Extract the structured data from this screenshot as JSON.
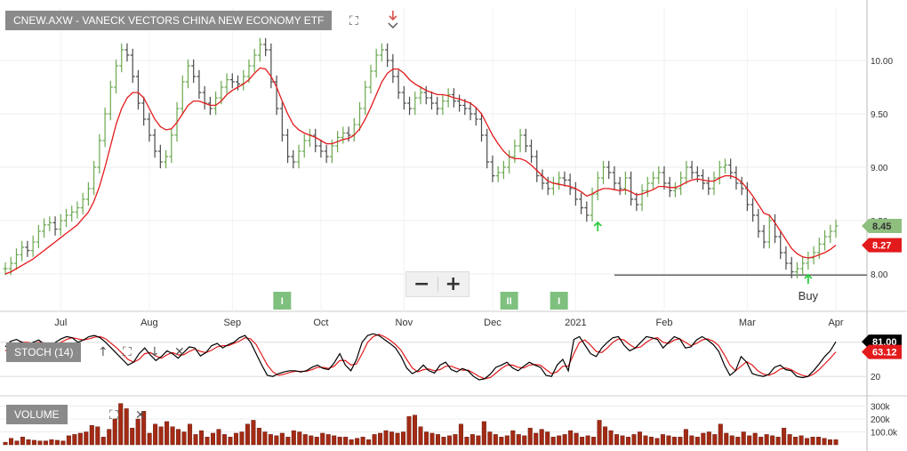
{
  "header": {
    "title": "CNEW.AXW - VANECK VECTORS CHINA NEW ECONOMY ETF"
  },
  "zoom": {
    "minus_label": "−",
    "plus_label": "+"
  },
  "panels": {
    "stoch_label": "STOCH (14)",
    "volume_label": "VOLUME"
  },
  "icons": {
    "fullscreen": "fullscreen-icon",
    "arrow_marker": "down-arrow-marker-icon",
    "close": "close-icon",
    "up": "arrow-up-icon",
    "down": "arrow-down-icon"
  },
  "colors": {
    "up_bar": "#6aa84f",
    "down_bar": "#4a4a4a",
    "ma_line": "#e31a1c",
    "stoch_k": "#000000",
    "stoch_d": "#e31a1c",
    "volume": "#a32a14",
    "last_price_tag": "#8fbf7f",
    "ma_tag": "#e31a1c",
    "event_badge": "#7fc07f",
    "buy_arrow": "#2ecc40"
  },
  "chart_data": [
    {
      "type": "line",
      "title": "CNEW.AXW - VANECK VECTORS CHINA NEW ECONOMY ETF",
      "x_tick_labels": [
        "Jul",
        "Aug",
        "Sep",
        "Oct",
        "Nov",
        "Dec",
        "2021",
        "Feb",
        "Mar",
        "Apr"
      ],
      "y_tick_labels": [
        "10.00",
        "9.50",
        "9.00",
        "8.50",
        "8.00"
      ],
      "ylim": [
        7.65,
        10.5
      ],
      "grid": true,
      "series": [
        {
          "values": [
            8.05,
            8.1,
            8.18,
            8.25,
            8.22,
            8.3,
            8.4,
            8.46,
            8.48,
            8.42,
            8.5,
            8.55,
            8.58,
            8.62,
            8.7,
            8.8,
            9.0,
            9.25,
            9.5,
            9.75,
            9.95,
            10.1,
            10.05,
            9.85,
            9.6,
            9.45,
            9.3,
            9.15,
            9.05,
            9.1,
            9.3,
            9.55,
            9.8,
            9.95,
            9.85,
            9.7,
            9.6,
            9.55,
            9.65,
            9.75,
            9.82,
            9.8,
            9.78,
            9.85,
            9.95,
            10.05,
            10.15,
            10.1,
            9.8,
            9.55,
            9.3,
            9.1,
            9.05,
            9.15,
            9.25,
            9.3,
            9.2,
            9.15,
            9.1,
            9.2,
            9.28,
            9.32,
            9.3,
            9.4,
            9.55,
            9.75,
            9.9,
            10.05,
            10.1,
            10.0,
            9.85,
            9.7,
            9.6,
            9.55,
            9.65,
            9.7,
            9.65,
            9.6,
            9.55,
            9.62,
            9.68,
            9.62,
            9.58,
            9.55,
            9.5,
            9.45,
            9.3,
            9.05,
            8.92,
            8.95,
            9.0,
            9.1,
            9.2,
            9.3,
            9.2,
            9.1,
            8.92,
            8.85,
            8.8,
            8.85,
            8.9,
            8.88,
            8.8,
            8.7,
            8.62,
            8.55,
            8.75,
            8.9,
            9.0,
            8.95,
            8.85,
            8.8,
            8.9,
            8.7,
            8.65,
            8.78,
            8.85,
            8.9,
            8.95,
            8.85,
            8.78,
            8.8,
            8.9,
            9.0,
            8.95,
            8.92,
            8.85,
            8.8,
            8.9,
            9.0,
            9.02,
            8.95,
            8.85,
            8.8,
            8.65,
            8.55,
            8.4,
            8.3,
            8.5,
            8.35,
            8.2,
            8.1,
            8.02,
            8.05,
            8.1,
            8.15,
            8.2,
            8.28,
            8.35,
            8.4,
            8.45
          ],
          "last_value": 8.45
        },
        {
          "values": [
            8.0,
            8.02,
            8.05,
            8.08,
            8.11,
            8.14,
            8.18,
            8.22,
            8.26,
            8.3,
            8.34,
            8.38,
            8.42,
            8.46,
            8.52,
            8.58,
            8.68,
            8.82,
            9.0,
            9.2,
            9.4,
            9.55,
            9.65,
            9.7,
            9.7,
            9.65,
            9.55,
            9.45,
            9.38,
            9.35,
            9.36,
            9.42,
            9.5,
            9.58,
            9.62,
            9.62,
            9.6,
            9.58,
            9.58,
            9.62,
            9.68,
            9.72,
            9.75,
            9.78,
            9.82,
            9.88,
            9.93,
            9.92,
            9.85,
            9.75,
            9.62,
            9.5,
            9.4,
            9.35,
            9.32,
            9.3,
            9.28,
            9.25,
            9.22,
            9.22,
            9.24,
            9.26,
            9.27,
            9.3,
            9.36,
            9.45,
            9.56,
            9.68,
            9.8,
            9.88,
            9.92,
            9.92,
            9.88,
            9.82,
            9.78,
            9.75,
            9.72,
            9.7,
            9.68,
            9.68,
            9.67,
            9.65,
            9.64,
            9.62,
            9.6,
            9.56,
            9.5,
            9.4,
            9.3,
            9.22,
            9.15,
            9.1,
            9.08,
            9.08,
            9.06,
            9.02,
            8.97,
            8.92,
            8.87,
            8.85,
            8.84,
            8.83,
            8.82,
            8.8,
            8.77,
            8.73,
            8.75,
            8.78,
            8.8,
            8.8,
            8.79,
            8.78,
            8.79,
            8.77,
            8.74,
            8.75,
            8.77,
            8.79,
            8.82,
            8.82,
            8.81,
            8.81,
            8.83,
            8.86,
            8.88,
            8.89,
            8.88,
            8.87,
            8.87,
            8.9,
            8.92,
            8.92,
            8.9,
            8.86,
            8.8,
            8.73,
            8.65,
            8.57,
            8.55,
            8.48,
            8.4,
            8.32,
            8.24,
            8.19,
            8.16,
            8.15,
            8.16,
            8.18,
            8.2,
            8.23,
            8.27
          ],
          "last_value": 8.27
        }
      ],
      "value_tags": [
        "8.45",
        "8.27"
      ],
      "support_level": 7.99,
      "annotations": [
        {
          "text": "Buy",
          "index": 145
        }
      ],
      "event_badges": [
        {
          "text": "I",
          "index": 50
        },
        {
          "text": "II",
          "index": 91
        },
        {
          "text": "I",
          "index": 100
        }
      ],
      "signal_arrows": [
        {
          "direction": "up",
          "index": 107
        },
        {
          "direction": "up",
          "index": 145
        },
        {
          "direction": "down",
          "index": 70
        }
      ]
    },
    {
      "type": "line",
      "title": "STOCH (14)",
      "y_tick_labels": [
        "80",
        "20"
      ],
      "ylim": [
        0,
        100
      ],
      "series": [
        {
          "values": [
            72,
            82,
            85,
            80,
            76,
            80,
            84,
            76,
            70,
            80,
            86,
            90,
            88,
            80,
            84,
            90,
            92,
            88,
            80,
            70,
            60,
            50,
            40,
            45,
            60,
            70,
            58,
            48,
            55,
            65,
            60,
            52,
            62,
            72,
            70,
            56,
            62,
            74,
            78,
            70,
            76,
            80,
            88,
            92,
            80,
            60,
            40,
            22,
            20,
            25,
            28,
            30,
            30,
            28,
            30,
            36,
            40,
            34,
            32,
            44,
            60,
            40,
            30,
            50,
            80,
            92,
            95,
            92,
            85,
            78,
            70,
            55,
            35,
            25,
            30,
            40,
            30,
            26,
            40,
            45,
            32,
            28,
            34,
            30,
            20,
            14,
            16,
            24,
            36,
            40,
            45,
            35,
            30,
            38,
            45,
            40,
            36,
            22,
            20,
            40,
            50,
            30,
            85,
            90,
            75,
            60,
            55,
            70,
            80,
            88,
            90,
            75,
            65,
            70,
            80,
            90,
            88,
            85,
            70,
            80,
            90,
            86,
            70,
            72,
            84,
            90,
            84,
            76,
            64,
            40,
            22,
            30,
            55,
            45,
            25,
            22,
            20,
            24,
            36,
            40,
            32,
            30,
            20,
            18,
            20,
            30,
            42,
            55,
            65,
            81
          ],
          "last_value": 81.0
        },
        {
          "values": [
            65,
            72,
            78,
            80,
            80,
            78,
            80,
            79,
            75,
            76,
            80,
            85,
            88,
            86,
            84,
            86,
            89,
            90,
            86,
            78,
            70,
            60,
            50,
            45,
            50,
            60,
            62,
            56,
            52,
            58,
            62,
            58,
            58,
            64,
            68,
            64,
            62,
            66,
            72,
            74,
            74,
            78,
            82,
            88,
            86,
            76,
            58,
            40,
            28,
            22,
            24,
            27,
            29,
            29,
            29,
            32,
            36,
            36,
            34,
            38,
            48,
            48,
            40,
            42,
            60,
            80,
            90,
            94,
            90,
            84,
            76,
            66,
            50,
            35,
            28,
            32,
            33,
            30,
            32,
            38,
            38,
            34,
            31,
            31,
            26,
            20,
            16,
            18,
            26,
            34,
            40,
            40,
            36,
            35,
            40,
            41,
            40,
            32,
            25,
            28,
            38,
            38,
            60,
            80,
            84,
            75,
            64,
            62,
            70,
            80,
            86,
            84,
            76,
            70,
            72,
            80,
            86,
            88,
            80,
            78,
            84,
            86,
            80,
            74,
            78,
            84,
            86,
            82,
            74,
            58,
            40,
            30,
            38,
            46,
            40,
            30,
            24,
            22,
            26,
            33,
            35,
            32,
            26,
            22,
            20,
            24,
            32,
            42,
            52,
            63.12
          ],
          "last_value": 63.12
        }
      ],
      "value_tags": [
        "81.00",
        "63.12"
      ]
    },
    {
      "type": "bar",
      "title": "VOLUME",
      "y_tick_labels": [
        "300k",
        "200k",
        "100.0k"
      ],
      "ylim": [
        0,
        400000
      ],
      "values": [
        20000,
        50000,
        30000,
        60000,
        40000,
        35000,
        30000,
        30000,
        40000,
        35000,
        30000,
        70000,
        80000,
        90000,
        100000,
        150000,
        140000,
        60000,
        120000,
        200000,
        320000,
        280000,
        130000,
        200000,
        260000,
        90000,
        160000,
        140000,
        180000,
        140000,
        120000,
        100000,
        160000,
        80000,
        110000,
        60000,
        90000,
        120000,
        80000,
        60000,
        90000,
        100000,
        160000,
        190000,
        130000,
        100000,
        80000,
        70000,
        90000,
        60000,
        110000,
        100000,
        80000,
        70000,
        60000,
        90000,
        80000,
        70000,
        60000,
        60000,
        40000,
        50000,
        60000,
        40000,
        80000,
        90000,
        110000,
        100000,
        90000,
        100000,
        220000,
        230000,
        140000,
        100000,
        90000,
        80000,
        60000,
        70000,
        80000,
        160000,
        60000,
        80000,
        70000,
        180000,
        100000,
        80000,
        60000,
        70000,
        110000,
        80000,
        70000,
        130000,
        90000,
        120000,
        100000,
        60000,
        70000,
        80000,
        110000,
        90000,
        60000,
        70000,
        60000,
        190000,
        140000,
        110000,
        80000,
        70000,
        60000,
        80000,
        100000,
        70000,
        60000,
        50000,
        80000,
        70000,
        60000,
        60000,
        120000,
        70000,
        60000,
        90000,
        100000,
        80000,
        160000,
        90000,
        70000,
        60000,
        100000,
        70000,
        90000,
        60000,
        80000,
        70000,
        60000,
        130000,
        80000,
        60000,
        70000,
        50000,
        60000,
        60000,
        50000,
        40000,
        40000
      ],
      "value_tags": []
    }
  ]
}
